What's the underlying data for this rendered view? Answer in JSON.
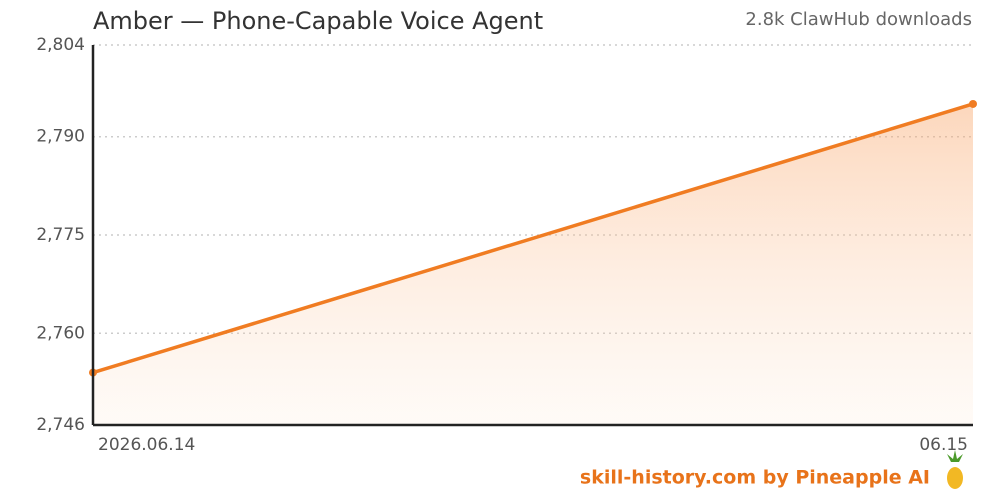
{
  "chart_data": {
    "type": "line",
    "title": "Amber — Phone-Capable Voice Agent",
    "subtitle": "2.8k ClawHub downloads",
    "footer": "skill-history.com by Pineapple AI",
    "categories": [
      "2026.06.14",
      "06.15"
    ],
    "series": [
      {
        "name": "downloads",
        "color": "#f07c22",
        "values": [
          2754,
          2795
        ]
      }
    ],
    "ylim": [
      2746,
      2804
    ],
    "yticks": [
      {
        "value": 2746,
        "label": "2,746"
      },
      {
        "value": 2760,
        "label": "2,760"
      },
      {
        "value": 2775,
        "label": "2,775"
      },
      {
        "value": 2790,
        "label": "2,790"
      },
      {
        "value": 2804,
        "label": "2,804"
      }
    ],
    "grid": true
  }
}
